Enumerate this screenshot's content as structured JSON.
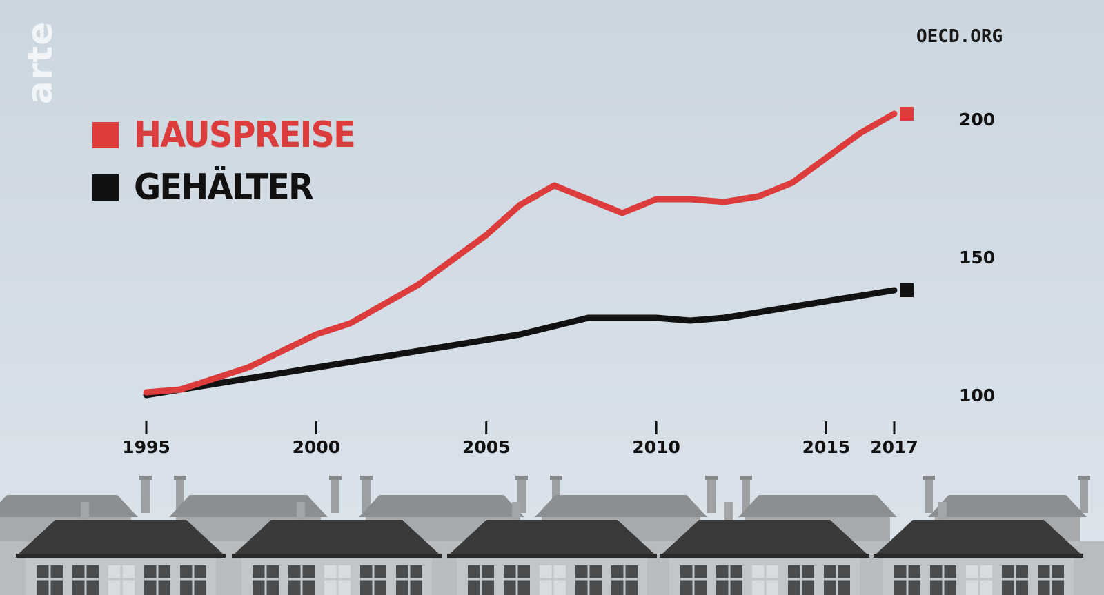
{
  "logo": {
    "text": "arte"
  },
  "source": "OECD.ORG",
  "colors": {
    "red": "#dc3c3c",
    "black": "#111111",
    "background": "#d3dde6"
  },
  "chart_data": {
    "type": "line",
    "title": "",
    "xlabel": "",
    "ylabel": "",
    "x": [
      1995,
      1996,
      1997,
      1998,
      1999,
      2000,
      2001,
      2002,
      2003,
      2004,
      2005,
      2006,
      2007,
      2008,
      2009,
      2010,
      2011,
      2012,
      2013,
      2014,
      2015,
      2016,
      2017
    ],
    "series": [
      {
        "name": "HAUSPREISE",
        "color": "#dc3c3c",
        "values": [
          101,
          102,
          106,
          110,
          116,
          122,
          126,
          133,
          140,
          149,
          158,
          169,
          176,
          171,
          166,
          171,
          171,
          170,
          172,
          177,
          186,
          195,
          202
        ]
      },
      {
        "name": "GEHÄLTER",
        "color": "#111111",
        "values": [
          100,
          102,
          104,
          106,
          108,
          110,
          112,
          114,
          116,
          118,
          120,
          122,
          125,
          128,
          128,
          128,
          127,
          128,
          130,
          132,
          134,
          136,
          138
        ]
      }
    ],
    "xticks": [
      1995,
      2000,
      2005,
      2010,
      2015,
      2017
    ],
    "xtick_labels": [
      "1995",
      "2000",
      "2005",
      "2010",
      "2015",
      "2017"
    ],
    "yticks": [
      100,
      150,
      200
    ],
    "ytick_labels": [
      "100",
      "150",
      "200"
    ],
    "ylim": [
      100,
      200
    ],
    "legend": "top-left",
    "grid": false
  }
}
